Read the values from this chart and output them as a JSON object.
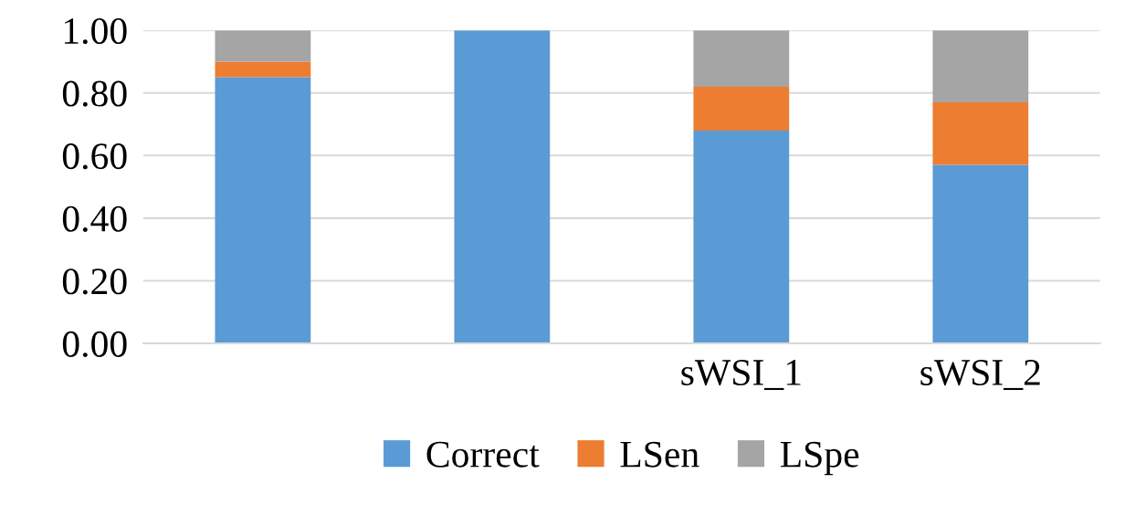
{
  "chart_data": {
    "type": "bar",
    "stacked": true,
    "categories": [
      null,
      null,
      "sWSI_1",
      "sWSI_2"
    ],
    "series": [
      {
        "name": "Correct",
        "color": "#5b9bd5",
        "values": [
          0.85,
          1.0,
          0.68,
          0.57
        ]
      },
      {
        "name": "LSen",
        "color": "#ed7d31",
        "values": [
          0.05,
          0,
          0.14,
          0.2
        ]
      },
      {
        "name": "LSpe",
        "color": "#a5a5a5",
        "values": [
          0.1,
          0,
          0.18,
          0.23
        ]
      }
    ],
    "ylim": [
      0,
      1
    ],
    "yticks": [
      {
        "value": 0,
        "label": "0.00"
      },
      {
        "value": 0.2,
        "label": "0.20"
      },
      {
        "value": 0.4,
        "label": "0.40"
      },
      {
        "value": 0.6,
        "label": "0.60"
      },
      {
        "value": 0.8,
        "label": "0.80"
      },
      {
        "value": 1,
        "label": "1.00"
      }
    ],
    "grid": "y",
    "legend": "bottom"
  }
}
